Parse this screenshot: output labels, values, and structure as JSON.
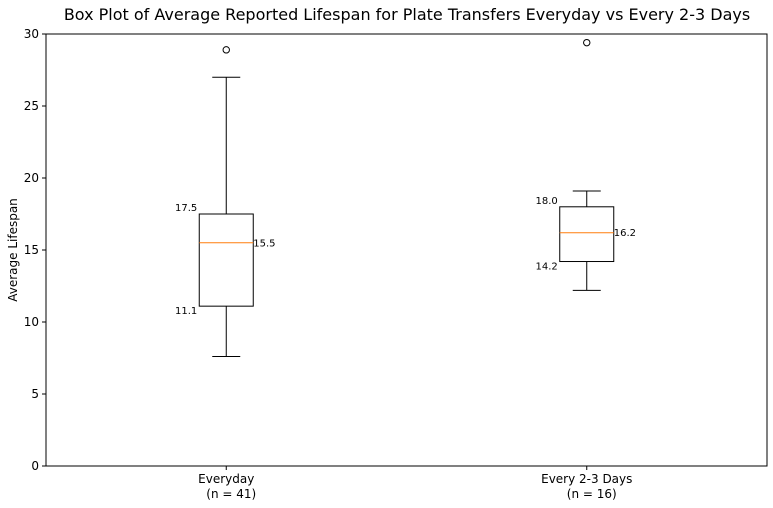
{
  "chart_data": {
    "type": "box",
    "title": "Box Plot of Average Reported Lifespan for Plate Transfers Everyday vs Every 2-3 Days",
    "ylabel": "Average Lifespan",
    "xlabel": "",
    "ylim": [
      0,
      30
    ],
    "yticks": [
      0,
      5,
      10,
      15,
      20,
      25,
      30
    ],
    "grid": false,
    "categories": [
      {
        "name": "Everyday",
        "sublabel": "(n = 41)"
      },
      {
        "name": "Every 2-3 Days",
        "sublabel": "(n = 16)"
      }
    ],
    "boxes": [
      {
        "whisker_low": 7.6,
        "q1": 11.1,
        "median": 15.5,
        "q3": 17.5,
        "whisker_high": 27.0,
        "outliers": [
          28.9
        ],
        "q1_label": "11.1",
        "median_label": "15.5",
        "q3_label": "17.5"
      },
      {
        "whisker_low": 12.2,
        "q1": 14.2,
        "median": 16.2,
        "q3": 18.0,
        "whisker_high": 19.1,
        "outliers": [
          29.4
        ],
        "q1_label": "14.2",
        "median_label": "16.2",
        "q3_label": "18.0"
      }
    ],
    "colors": {
      "box": "#000000",
      "median": "#ff7f0e",
      "outlier": "#000000"
    }
  }
}
